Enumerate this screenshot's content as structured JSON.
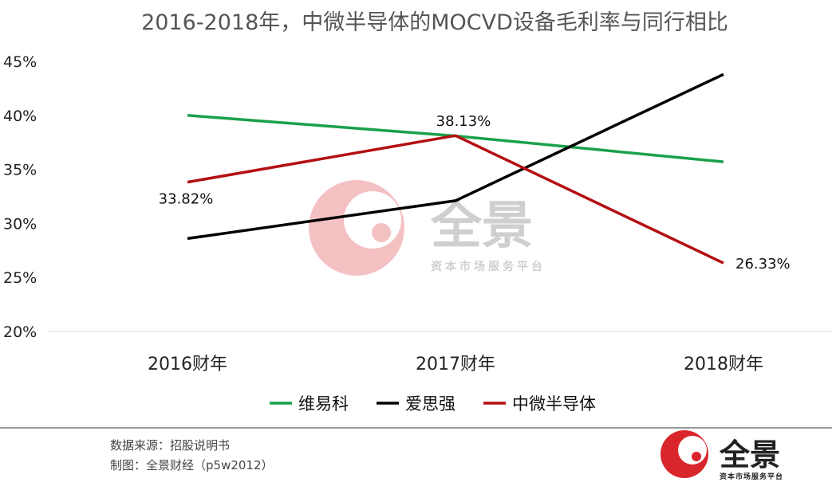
{
  "chart_data": {
    "type": "line",
    "title": "2016-2018年，中微半导体的MOCVD设备毛利率与同行相比",
    "categories": [
      "2016财年",
      "2017财年",
      "2018财年"
    ],
    "series": [
      {
        "name": "维易科",
        "values": [
          40.0,
          38.1,
          35.7
        ],
        "color": "#1aa14a"
      },
      {
        "name": "爱思强",
        "values": [
          28.6,
          32.1,
          43.8
        ],
        "color": "#000000"
      },
      {
        "name": "中微半导体",
        "values": [
          33.82,
          38.13,
          26.33
        ],
        "color": "#b40f12"
      }
    ],
    "data_labels": [
      {
        "series": 2,
        "index": 0,
        "text": "33.82%"
      },
      {
        "series": 2,
        "index": 1,
        "text": "38.13%"
      },
      {
        "series": 2,
        "index": 2,
        "text": "26.33%"
      }
    ],
    "ylim": [
      20,
      45
    ],
    "yticks": [
      "20%",
      "25%",
      "30%",
      "35%",
      "40%",
      "45%"
    ],
    "xlabel": "",
    "ylabel": "",
    "grid": false,
    "legend": "bottom"
  },
  "footer": {
    "source": "数据来源：招股说明书",
    "made_by": "制图：全景财经（p5w2012）"
  },
  "watermark": {
    "brand": "全景",
    "tagline": "资本市场服务平台",
    "color": "#d9262c"
  }
}
